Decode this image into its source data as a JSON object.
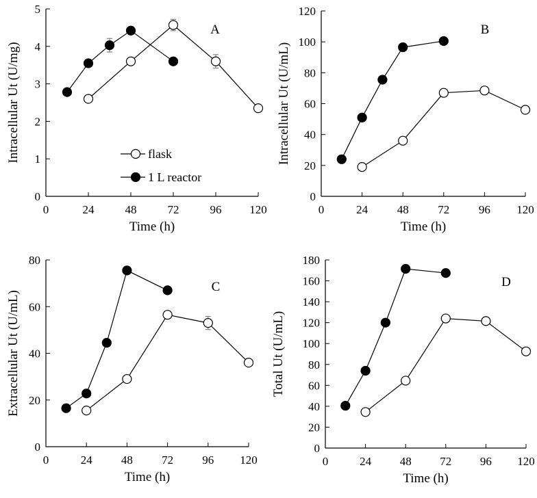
{
  "colors": {
    "ink": "#000000",
    "open_fill": "#ffffff",
    "closed_fill": "#000000",
    "errorbar": "#808080"
  },
  "legend": {
    "flask": "flask",
    "reactor": "1 L reactor",
    "placement": "bottom-left of panel A"
  },
  "chart_data": [
    {
      "id": "A",
      "type": "scatter",
      "label": "A",
      "xlabel": "Time (h)",
      "ylabel": "Intracellular Ut (U/mg)",
      "xlim": [
        0,
        120
      ],
      "ylim": [
        0,
        5
      ],
      "xticks": [
        0,
        24,
        48,
        72,
        96,
        120
      ],
      "yticks": [
        0,
        1,
        2,
        3,
        4,
        5
      ],
      "has_legend": true,
      "series": [
        {
          "name": "flask",
          "marker": "open",
          "x": [
            24,
            48,
            72,
            96,
            120
          ],
          "y": [
            2.6,
            3.6,
            4.57,
            3.6,
            2.35
          ],
          "err": [
            0,
            0,
            0.15,
            0.18,
            0
          ]
        },
        {
          "name": "1 L reactor",
          "marker": "closed",
          "x": [
            12,
            24,
            36,
            48,
            72
          ],
          "y": [
            2.78,
            3.55,
            4.03,
            4.42,
            3.6
          ],
          "err": [
            0,
            0,
            0.18,
            0,
            0
          ]
        }
      ]
    },
    {
      "id": "B",
      "type": "scatter",
      "label": "B",
      "xlabel": "Time (h)",
      "ylabel": "Intracellular Ut (U/mL)",
      "xlim": [
        0,
        120
      ],
      "ylim": [
        0,
        120
      ],
      "xticks": [
        0,
        24,
        48,
        72,
        96,
        120
      ],
      "yticks": [
        0,
        20,
        40,
        60,
        80,
        100,
        120
      ],
      "has_legend": false,
      "series": [
        {
          "name": "flask",
          "marker": "open",
          "x": [
            24,
            48,
            72,
            96,
            120
          ],
          "y": [
            19,
            36,
            67,
            68.5,
            56
          ],
          "err": [
            0,
            0,
            0,
            2.5,
            0
          ]
        },
        {
          "name": "1 L reactor",
          "marker": "closed",
          "x": [
            12,
            24,
            36,
            48,
            72
          ],
          "y": [
            24,
            51,
            75.5,
            96.5,
            100.5
          ],
          "err": [
            0,
            0,
            0,
            0,
            0
          ]
        }
      ]
    },
    {
      "id": "C",
      "type": "scatter",
      "label": "C",
      "xlabel": "Time (h)",
      "ylabel": "Extracellular Ut (U/mL)",
      "xlim": [
        0,
        120
      ],
      "ylim": [
        0,
        80
      ],
      "xticks": [
        0,
        24,
        48,
        72,
        96,
        120
      ],
      "yticks": [
        0,
        20,
        40,
        60,
        80
      ],
      "has_legend": false,
      "series": [
        {
          "name": "flask",
          "marker": "open",
          "x": [
            24,
            48,
            72,
            96,
            120
          ],
          "y": [
            15.5,
            29,
            56.5,
            53,
            36
          ],
          "err": [
            0,
            0,
            0,
            2.8,
            0
          ]
        },
        {
          "name": "1 L reactor",
          "marker": "closed",
          "x": [
            12,
            24,
            36,
            48,
            72
          ],
          "y": [
            16.5,
            22.8,
            44.5,
            75.5,
            67
          ],
          "err": [
            0,
            0,
            0,
            0,
            0
          ]
        }
      ]
    },
    {
      "id": "D",
      "type": "scatter",
      "label": "D",
      "xlabel": "Time (h)",
      "ylabel": "Total Ut (U/mL)",
      "xlim": [
        0,
        120
      ],
      "ylim": [
        0,
        180
      ],
      "xticks": [
        0,
        24,
        48,
        72,
        96,
        120
      ],
      "yticks": [
        0,
        20,
        40,
        60,
        80,
        100,
        120,
        140,
        160,
        180
      ],
      "has_legend": false,
      "series": [
        {
          "name": "flask",
          "marker": "open",
          "x": [
            24,
            48,
            72,
            96,
            120
          ],
          "y": [
            34.5,
            64.5,
            124,
            121.5,
            92.5
          ],
          "err": [
            0,
            0,
            0,
            0,
            0
          ]
        },
        {
          "name": "1 L reactor",
          "marker": "closed",
          "x": [
            12,
            24,
            36,
            48,
            72
          ],
          "y": [
            40.5,
            74,
            120,
            171.5,
            167.5
          ],
          "err": [
            0,
            0,
            0,
            0,
            3.5
          ]
        }
      ]
    }
  ]
}
